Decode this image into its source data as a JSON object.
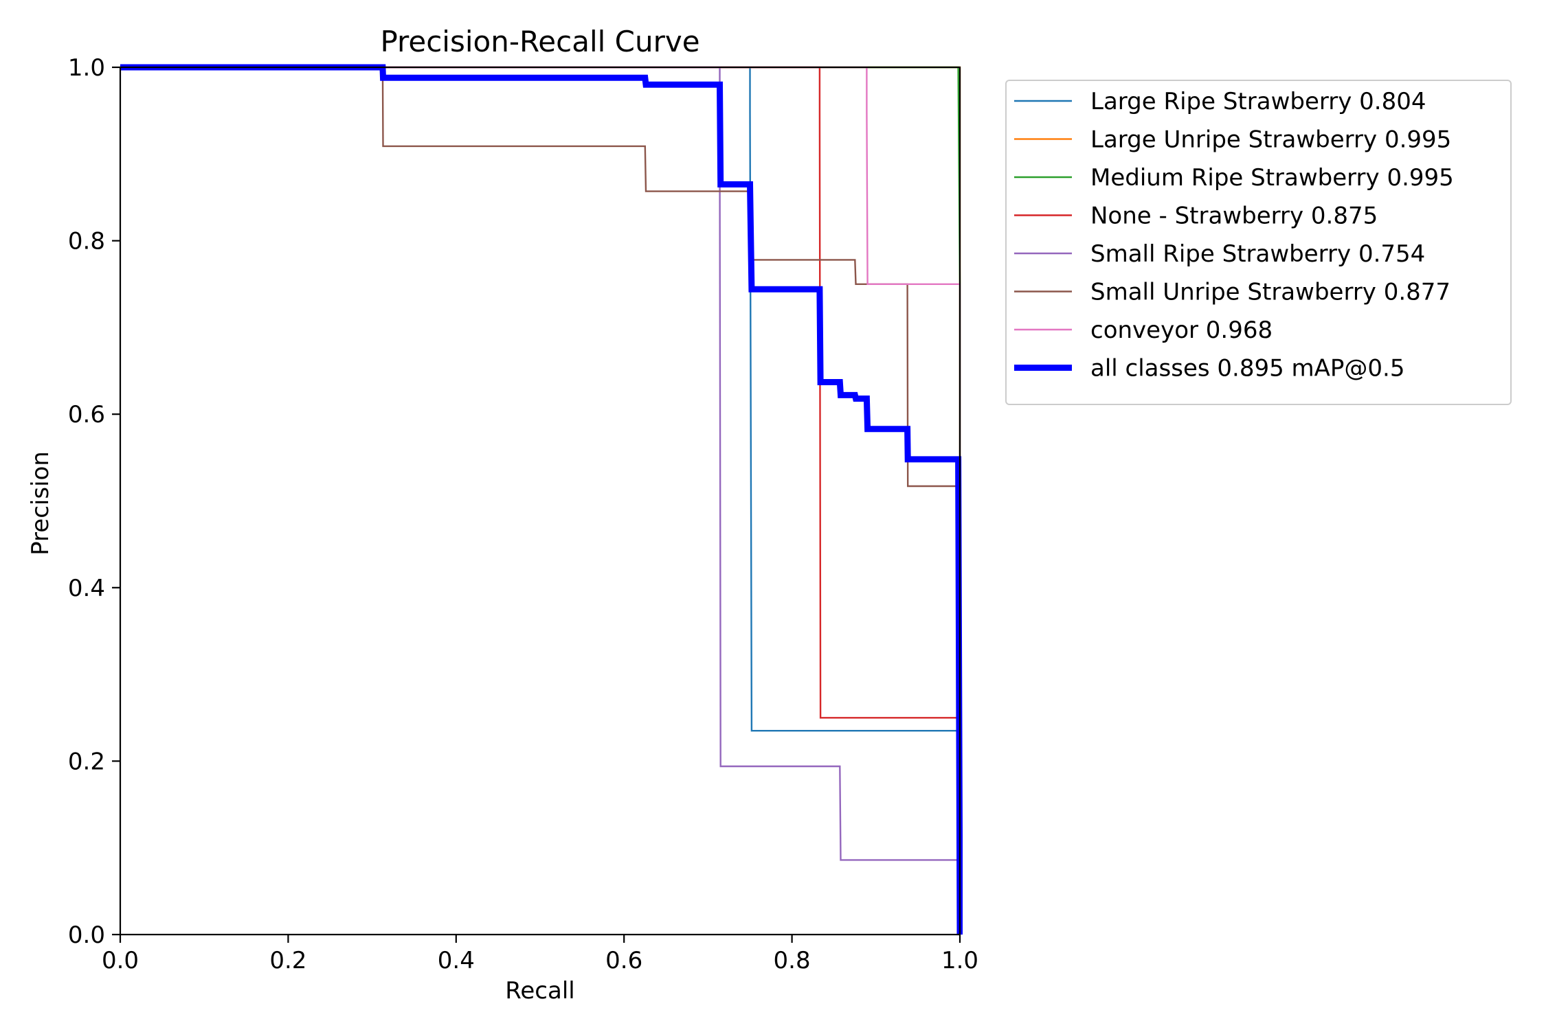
{
  "chart_data": {
    "type": "line",
    "title": "Precision-Recall Curve",
    "xlabel": "Recall",
    "ylabel": "Precision",
    "xlim": [
      0,
      1
    ],
    "ylim": [
      0,
      1
    ],
    "xticks": [
      "0.0",
      "0.2",
      "0.4",
      "0.6",
      "0.8",
      "1.0"
    ],
    "yticks": [
      "0.0",
      "0.2",
      "0.4",
      "0.6",
      "0.8",
      "1.0"
    ],
    "grid": false,
    "legend_position": "outside-right-top",
    "series": [
      {
        "name": "Large Ripe Strawberry 0.804",
        "color": "#1f77b4",
        "emphasis": false,
        "x": [
          0,
          0.75,
          0.75,
          0.752,
          1.0,
          1.0
        ],
        "y": [
          1,
          1,
          0.95,
          0.235,
          0.235,
          0
        ]
      },
      {
        "name": "Large Unripe Strawberry 0.995",
        "color": "#ff7f0e",
        "emphasis": false,
        "x": [
          0,
          0.998,
          1.0,
          1.0
        ],
        "y": [
          1,
          1,
          1,
          0
        ]
      },
      {
        "name": "Medium Ripe Strawberry 0.995",
        "color": "#2ca02c",
        "emphasis": false,
        "x": [
          0,
          0.998,
          1.0,
          1.0
        ],
        "y": [
          1,
          1,
          0.75,
          0
        ]
      },
      {
        "name": "None - Strawberry 0.875",
        "color": "#d62728",
        "emphasis": false,
        "x": [
          0,
          0.833,
          0.833,
          0.834,
          1.0,
          1.0
        ],
        "y": [
          1,
          1,
          0.95,
          0.25,
          0.25,
          0
        ]
      },
      {
        "name": "Small Ripe Strawberry 0.754",
        "color": "#9467bd",
        "emphasis": false,
        "x": [
          0,
          0.714,
          0.714,
          0.715,
          0.857,
          0.858,
          1.0,
          1.0
        ],
        "y": [
          1,
          1,
          0.9,
          0.194,
          0.194,
          0.086,
          0.086,
          0
        ]
      },
      {
        "name": "Small Unripe Strawberry 0.877",
        "color": "#8c564b",
        "emphasis": false,
        "x": [
          0,
          0.3125,
          0.313,
          0.625,
          0.626,
          0.75,
          0.751,
          0.875,
          0.876,
          0.9375,
          0.938,
          1.0,
          1.0
        ],
        "y": [
          1,
          1,
          0.909,
          0.909,
          0.857,
          0.857,
          0.778,
          0.778,
          0.75,
          0.75,
          0.517,
          0.517,
          0
        ]
      },
      {
        "name": "conveyor 0.968",
        "color": "#e377c2",
        "emphasis": false,
        "x": [
          0,
          0.889,
          0.889,
          0.89,
          1.0,
          1.0
        ],
        "y": [
          1,
          1,
          0.95,
          0.75,
          0.75,
          0
        ]
      },
      {
        "name": "all classes 0.895 mAP@0.5",
        "color": "#0000ff",
        "emphasis": true,
        "x": [
          0,
          0.3125,
          0.313,
          0.625,
          0.626,
          0.714,
          0.715,
          0.75,
          0.752,
          0.833,
          0.834,
          0.857,
          0.858,
          0.875,
          0.876,
          0.889,
          0.89,
          0.9375,
          0.938,
          0.998,
          1.0
        ],
        "y": [
          1,
          1,
          0.988,
          0.988,
          0.98,
          0.98,
          0.865,
          0.865,
          0.744,
          0.744,
          0.637,
          0.637,
          0.622,
          0.622,
          0.618,
          0.618,
          0.583,
          0.583,
          0.548,
          0.548,
          0
        ]
      }
    ]
  }
}
